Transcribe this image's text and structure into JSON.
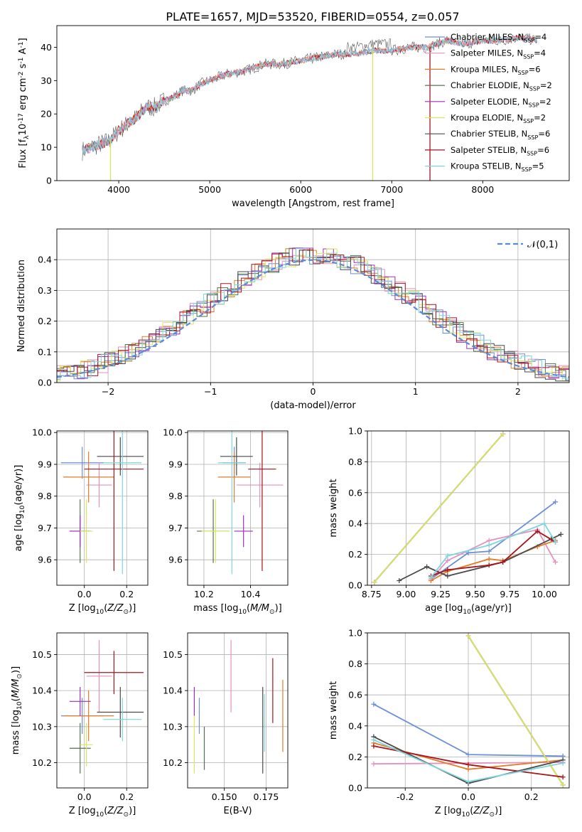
{
  "title": "PLATE=1657, MJD=53520, FIBERID=0554, z=0.057",
  "legend_models": [
    {
      "label": "Chabrier MILES, N$_{SSP}$=4",
      "color": "#6b8fd8"
    },
    {
      "label": "Salpeter MILES, N$_{SSP}$=4",
      "color": "#e591bd"
    },
    {
      "label": "Kroupa MILES, N$_{SSP}$=6",
      "color": "#e07c2a"
    },
    {
      "label": "Chabrier ELODIE, N$_{SSP}$=2",
      "color": "#55704e"
    },
    {
      "label": "Salpeter ELODIE, N$_{SSP}$=2",
      "color": "#9d2fb8"
    },
    {
      "label": "Kroupa ELODIE, N$_{SSP}$=2",
      "color": "#d8e85c"
    },
    {
      "label": "Chabrier STELIB, N$_{SSP}$=6",
      "color": "#4a4a4a"
    },
    {
      "label": "Salpeter STELIB, N$_{SSP}$=6",
      "color": "#a8141c"
    },
    {
      "label": "Kroupa STELIB, N$_{SSP}$=5",
      "color": "#7fd5dd"
    }
  ],
  "chart_data": [
    {
      "id": "spectrum",
      "type": "line",
      "xlabel": "wavelength [Angstrom, rest frame]",
      "ylabel": "Flux [f$_\\lambda$10$^{-17}$ erg cm$^{-2}$ s$^{-1}$ A$^{-1}$]",
      "xlim": [
        3320,
        8950
      ],
      "ylim": [
        0,
        46.5
      ],
      "xticks": [
        4000,
        5000,
        6000,
        7000,
        8000
      ],
      "yticks": [
        0,
        10,
        20,
        30,
        40
      ],
      "grid": false,
      "legend_position": "lower-right",
      "envelope": {
        "x": [
          3600,
          3700,
          3800,
          3900,
          4000,
          4100,
          4200,
          4300,
          4400,
          4500,
          4600,
          4700,
          4800,
          4900,
          5000,
          5200,
          5400,
          5600,
          5800,
          6000,
          6200,
          6400,
          6600,
          6800,
          7000,
          7200,
          7400,
          7600,
          7800,
          8000,
          8200,
          8400,
          8600
        ],
        "y": [
          9,
          10,
          11,
          12,
          15,
          17,
          19,
          22,
          22,
          24,
          25,
          27,
          27,
          29,
          30,
          32,
          33,
          35,
          35,
          36,
          37,
          38,
          38,
          39,
          39,
          40,
          40,
          42,
          41,
          42,
          42,
          43,
          42
        ]
      },
      "dips": [
        {
          "x": 3910,
          "y": 0
        },
        {
          "x": 6790,
          "y": 0
        },
        {
          "x": 7420,
          "y": 0
        }
      ]
    },
    {
      "id": "residuals",
      "type": "histogram",
      "xlabel": "(data-model)/error",
      "ylabel": "Normed distribution",
      "xlim": [
        -2.5,
        2.5
      ],
      "ylim": [
        0,
        0.5
      ],
      "xticks": [
        -2,
        -1,
        0,
        1,
        2
      ],
      "yticks": [
        0.0,
        0.1,
        0.2,
        0.3,
        0.4
      ],
      "grid": true,
      "legend_position": "top-right",
      "reference_label": "$\\mathcal{N}(0,1)$",
      "bin_width": 0.1
    },
    {
      "id": "age-vs-Z",
      "type": "errorbar",
      "xlabel": "Z [log$_{10}$($Z/Z_\\odot$)]",
      "ylabel": "age  [log$_{10}$($age/yr$)]",
      "xlim": [
        -0.13,
        0.3
      ],
      "ylim": [
        9.52,
        10.005
      ],
      "xticks": [
        0.0,
        0.2
      ],
      "yticks": [
        9.6,
        9.7,
        9.8,
        9.9,
        10.0
      ],
      "grid": true,
      "points": [
        {
          "model": 0,
          "x": -0.01,
          "xerr": 0.1,
          "y": 9.905,
          "yerr": 0.05
        },
        {
          "model": 1,
          "x": 0.07,
          "xerr": 0.06,
          "y": 9.835,
          "yerr": 0.07
        },
        {
          "model": 2,
          "x": 0.02,
          "xerr": 0.12,
          "y": 9.86,
          "yerr": 0.08
        },
        {
          "model": 3,
          "x": -0.02,
          "xerr": 0.05,
          "y": 9.69,
          "yerr": 0.1
        },
        {
          "model": 4,
          "x": -0.02,
          "xerr": 0.05,
          "y": 9.69,
          "yerr": 0.05
        },
        {
          "model": 5,
          "x": 0.01,
          "xerr": 0.03,
          "y": 9.69,
          "yerr": 0.1
        },
        {
          "model": 6,
          "x": 0.17,
          "xerr": 0.11,
          "y": 9.925,
          "yerr": 0.06
        },
        {
          "model": 7,
          "x": 0.14,
          "xerr": 0.14,
          "y": 9.885,
          "yerr": 0.32
        },
        {
          "model": 8,
          "x": 0.18,
          "xerr": 0.09,
          "y": 9.905,
          "yerr": 0.35
        }
      ]
    },
    {
      "id": "age-vs-mass",
      "type": "errorbar",
      "xlabel": "mass [log$_{10}$($M/M_\\odot$)]",
      "ylabel": "",
      "xlim": [
        10.13,
        10.56
      ],
      "ylim": [
        9.52,
        10.005
      ],
      "xticks": [
        10.2,
        10.4
      ],
      "yticks": [
        9.6,
        9.7,
        9.8,
        9.9,
        10.0
      ],
      "grid": true,
      "points": [
        {
          "model": 0,
          "x": 10.33,
          "xerr": 0.05,
          "y": 9.905,
          "yerr": 0.05
        },
        {
          "model": 1,
          "x": 10.44,
          "xerr": 0.1,
          "y": 9.835,
          "yerr": 0.07
        },
        {
          "model": 2,
          "x": 10.33,
          "xerr": 0.07,
          "y": 9.86,
          "yerr": 0.08
        },
        {
          "model": 3,
          "x": 10.24,
          "xerr": 0.07,
          "y": 9.69,
          "yerr": 0.1
        },
        {
          "model": 4,
          "x": 10.37,
          "xerr": 0.04,
          "y": 9.69,
          "yerr": 0.05
        },
        {
          "model": 5,
          "x": 10.25,
          "xerr": 0.06,
          "y": 9.69,
          "yerr": 0.1
        },
        {
          "model": 6,
          "x": 10.34,
          "xerr": 0.07,
          "y": 9.925,
          "yerr": 0.06
        },
        {
          "model": 7,
          "x": 10.45,
          "xerr": 0.06,
          "y": 9.885,
          "yerr": 0.32
        },
        {
          "model": 8,
          "x": 10.32,
          "xerr": 0.06,
          "y": 9.905,
          "yerr": 0.35
        }
      ]
    },
    {
      "id": "massweight-vs-age",
      "type": "line",
      "xlabel": "age  [log$_{10}$($age/yr$)]",
      "ylabel": "mass weight",
      "xlim": [
        8.72,
        10.18
      ],
      "ylim": [
        0,
        1.0
      ],
      "xticks": [
        8.75,
        9.0,
        9.25,
        9.5,
        9.75,
        10.0
      ],
      "yticks": [
        0.0,
        0.2,
        0.4,
        0.6,
        0.8,
        1.0
      ],
      "grid": true,
      "series": [
        {
          "model": 0,
          "x": [
            9.18,
            9.45,
            9.6,
            10.08
          ],
          "y": [
            0.04,
            0.21,
            0.22,
            0.54
          ]
        },
        {
          "model": 1,
          "x": [
            9.18,
            9.3,
            9.6,
            9.95,
            10.08
          ],
          "y": [
            0.04,
            0.16,
            0.29,
            0.36,
            0.15
          ]
        },
        {
          "model": 2,
          "x": [
            9.18,
            9.3,
            9.6,
            9.7,
            9.95,
            10.08
          ],
          "y": [
            0.03,
            0.09,
            0.17,
            0.16,
            0.25,
            0.29
          ]
        },
        {
          "model": 3,
          "x": [
            8.77,
            9.7
          ],
          "y": [
            0.02,
            0.98
          ]
        },
        {
          "model": 4,
          "x": [
            8.77,
            9.7
          ],
          "y": [
            0.02,
            0.98
          ]
        },
        {
          "model": 5,
          "x": [
            8.77,
            9.7
          ],
          "y": [
            0.02,
            0.98
          ]
        },
        {
          "model": 6,
          "x": [
            8.95,
            9.15,
            9.3,
            9.7,
            10.05,
            10.12
          ],
          "y": [
            0.03,
            0.12,
            0.06,
            0.15,
            0.3,
            0.33
          ]
        },
        {
          "model": 7,
          "x": [
            9.18,
            9.3,
            9.6,
            9.7,
            9.95,
            10.08
          ],
          "y": [
            0.06,
            0.1,
            0.13,
            0.15,
            0.35,
            0.28
          ]
        },
        {
          "model": 8,
          "x": [
            9.18,
            9.3,
            9.6,
            10.0,
            10.08
          ],
          "y": [
            0.05,
            0.19,
            0.26,
            0.4,
            0.28
          ]
        }
      ]
    },
    {
      "id": "mass-vs-Z",
      "type": "errorbar",
      "xlabel": "Z [log$_{10}$($Z/Z_\\odot$)]",
      "ylabel": "mass [log$_{10}$($M/M_\\odot$)]",
      "xlim": [
        -0.13,
        0.3
      ],
      "ylim": [
        10.13,
        10.56
      ],
      "xticks": [
        0.0,
        0.2
      ],
      "yticks": [
        10.2,
        10.3,
        10.4,
        10.5
      ],
      "grid": true,
      "points": [
        {
          "model": 0,
          "x": -0.01,
          "xerr": 0.1,
          "y": 10.33,
          "yerr": 0.05
        },
        {
          "model": 1,
          "x": 0.07,
          "xerr": 0.06,
          "y": 10.44,
          "yerr": 0.1
        },
        {
          "model": 2,
          "x": 0.02,
          "xerr": 0.12,
          "y": 10.33,
          "yerr": 0.07
        },
        {
          "model": 3,
          "x": -0.02,
          "xerr": 0.05,
          "y": 10.24,
          "yerr": 0.07
        },
        {
          "model": 4,
          "x": -0.02,
          "xerr": 0.05,
          "y": 10.37,
          "yerr": 0.04
        },
        {
          "model": 5,
          "x": 0.01,
          "xerr": 0.03,
          "y": 10.25,
          "yerr": 0.06
        },
        {
          "model": 6,
          "x": 0.17,
          "xerr": 0.11,
          "y": 10.34,
          "yerr": 0.07
        },
        {
          "model": 7,
          "x": 0.14,
          "xerr": 0.14,
          "y": 10.45,
          "yerr": 0.06
        },
        {
          "model": 8,
          "x": 0.18,
          "xerr": 0.09,
          "y": 10.32,
          "yerr": 0.06
        }
      ]
    },
    {
      "id": "mass-vs-ebv",
      "type": "errorbar",
      "xlabel": "E(B-V)",
      "ylabel": "",
      "xlim": [
        0.128,
        0.188
      ],
      "ylim": [
        10.13,
        10.56
      ],
      "xticks": [
        0.15,
        0.175
      ],
      "yticks": [
        10.2,
        10.3,
        10.4,
        10.5
      ],
      "grid": true,
      "points": [
        {
          "model": 0,
          "x": 0.135,
          "xerr": 0,
          "y": 10.33,
          "yerr": 0.05
        },
        {
          "model": 1,
          "x": 0.154,
          "xerr": 0,
          "y": 10.44,
          "yerr": 0.1
        },
        {
          "model": 2,
          "x": 0.185,
          "xerr": 0,
          "y": 10.33,
          "yerr": 0.1
        },
        {
          "model": 3,
          "x": 0.138,
          "xerr": 0,
          "y": 10.24,
          "yerr": 0.06
        },
        {
          "model": 4,
          "x": 0.132,
          "xerr": 0,
          "y": 10.37,
          "yerr": 0.04
        },
        {
          "model": 5,
          "x": 0.132,
          "xerr": 0,
          "y": 10.25,
          "yerr": 0.08
        },
        {
          "model": 6,
          "x": 0.173,
          "xerr": 0,
          "y": 10.29,
          "yerr": 0.12
        },
        {
          "model": 7,
          "x": 0.179,
          "xerr": 0,
          "y": 10.4,
          "yerr": 0.09
        },
        {
          "model": 8,
          "x": 0.174,
          "xerr": 0,
          "y": 10.31,
          "yerr": 0.08
        }
      ]
    },
    {
      "id": "massweight-vs-Z",
      "type": "line",
      "xlabel": "Z [log$_{10}$($Z/Z_\\odot$)]",
      "ylabel": "mass weight",
      "xlim": [
        -0.32,
        0.32
      ],
      "ylim": [
        0,
        1.0
      ],
      "xticks": [
        -0.2,
        0.0,
        0.2
      ],
      "yticks": [
        0.0,
        0.2,
        0.4,
        0.6,
        0.8,
        1.0
      ],
      "grid": true,
      "series": [
        {
          "model": 0,
          "x": [
            -0.3,
            0.0,
            0.3
          ],
          "y": [
            0.54,
            0.215,
            0.205
          ]
        },
        {
          "model": 1,
          "x": [
            -0.3,
            0.3
          ],
          "y": [
            0.155,
            0.165
          ]
        },
        {
          "model": 2,
          "x": [
            -0.3,
            0.0,
            0.3
          ],
          "y": [
            0.29,
            0.12,
            0.18
          ]
        },
        {
          "model": 3,
          "x": [
            0.0,
            0.3
          ],
          "y": [
            0.98,
            0.02
          ]
        },
        {
          "model": 4,
          "x": [
            0.0,
            0.3
          ],
          "y": [
            0.98,
            0.02
          ]
        },
        {
          "model": 5,
          "x": [
            0.0,
            0.3
          ],
          "y": [
            0.98,
            0.02
          ]
        },
        {
          "model": 6,
          "x": [
            -0.3,
            0.0,
            0.3
          ],
          "y": [
            0.33,
            0.03,
            0.18
          ]
        },
        {
          "model": 7,
          "x": [
            -0.3,
            0.0,
            0.3
          ],
          "y": [
            0.27,
            0.15,
            0.07
          ]
        },
        {
          "model": 8,
          "x": [
            -0.3,
            0.0,
            0.3
          ],
          "y": [
            0.31,
            0.04,
            0.16
          ]
        }
      ]
    }
  ]
}
